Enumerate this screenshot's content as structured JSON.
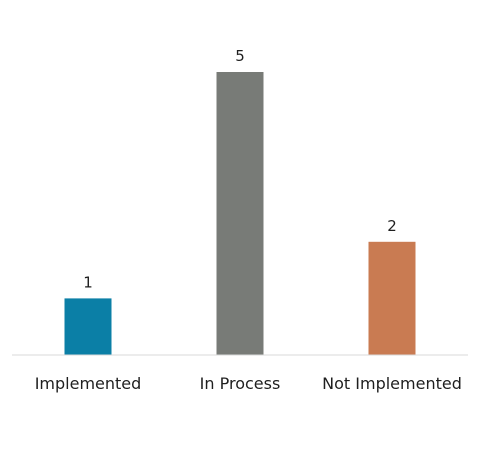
{
  "chart_data": {
    "type": "bar",
    "categories": [
      "Implemented",
      "In Process",
      "Not Implemented"
    ],
    "values": [
      1,
      5,
      2
    ],
    "colors": [
      "#0b7fa6",
      "#787b77",
      "#c97b52"
    ],
    "axis_color": "#d9d9d9",
    "label_color": "#1f1f1f",
    "data_labels": true,
    "grid": false,
    "legend": "none",
    "ylim": [
      0,
      5
    ]
  }
}
